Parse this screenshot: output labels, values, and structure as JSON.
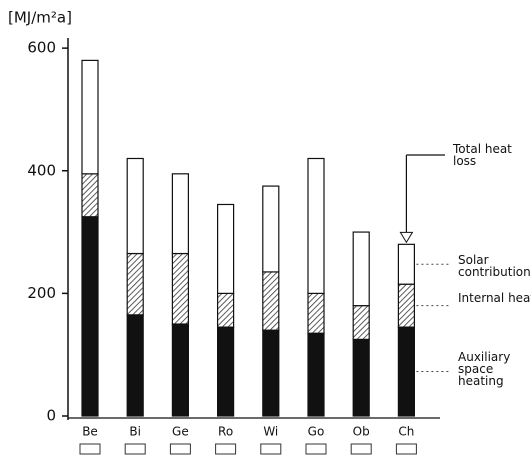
{
  "chart_data": {
    "type": "bar",
    "stacked": true,
    "y_label": "[MJ/m²a]",
    "categories": [
      "Be",
      "Bi",
      "Ge",
      "Ro",
      "Wi",
      "Go",
      "Ob",
      "Ch"
    ],
    "series": [
      {
        "name": "Auxiliary space heating",
        "color": "#111111",
        "values": [
          325,
          165,
          150,
          145,
          140,
          135,
          125,
          145
        ]
      },
      {
        "name": "Internal heat",
        "color": "#888888",
        "values": [
          70,
          100,
          115,
          55,
          95,
          65,
          55,
          70
        ]
      },
      {
        "name": "Solar contribution",
        "color": "#ffffff",
        "values": [
          185,
          155,
          130,
          145,
          140,
          220,
          120,
          65
        ]
      }
    ],
    "annotation": "Total heat loss",
    "ylim": [
      0,
      610
    ],
    "yticks": [
      0,
      200,
      400,
      600
    ]
  }
}
